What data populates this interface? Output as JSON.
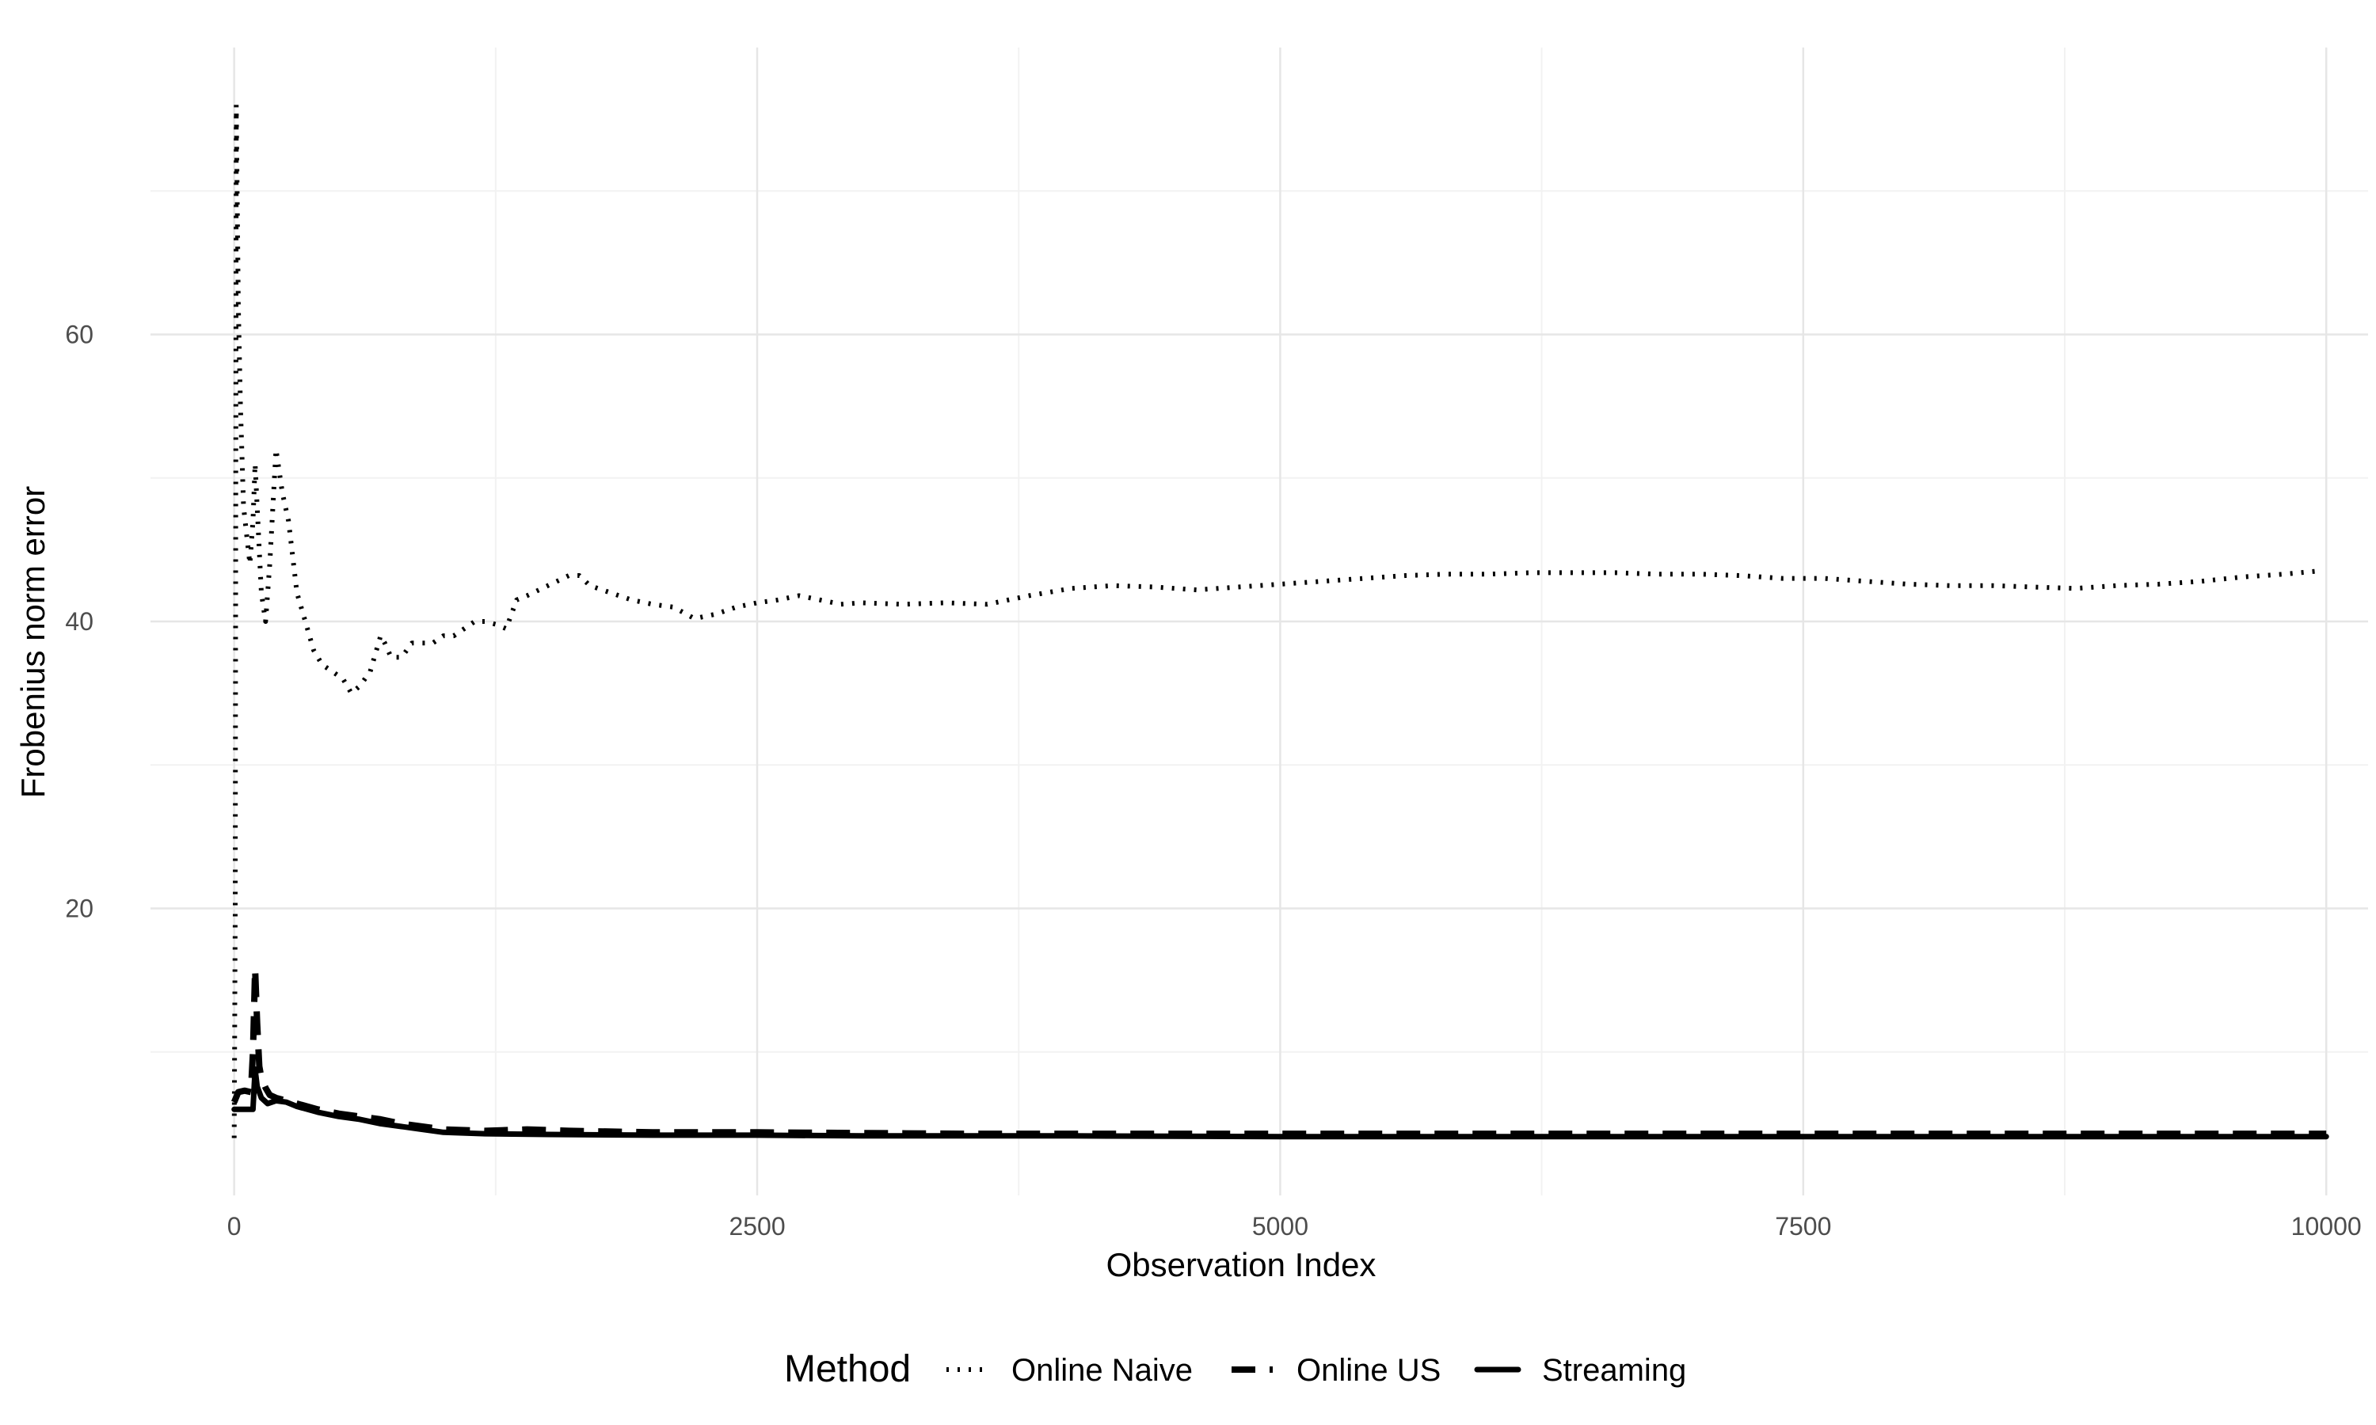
{
  "chart_data": {
    "type": "line",
    "xlabel": "Observation Index",
    "ylabel": "Frobenius norm error",
    "xlim": [
      -400,
      10200
    ],
    "ylim": [
      0,
      80
    ],
    "x_ticks": [
      0,
      2500,
      5000,
      7500,
      10000
    ],
    "y_ticks": [
      20,
      40,
      60
    ],
    "grid": true,
    "legend": {
      "title": "Method",
      "position": "bottom"
    },
    "series": [
      {
        "name": "Online Naive",
        "dash": "dotted",
        "x": [
          0,
          5,
          10,
          20,
          30,
          45,
          60,
          75,
          90,
          100,
          110,
          130,
          150,
          170,
          200,
          230,
          260,
          300,
          340,
          380,
          420,
          470,
          520,
          560,
          600,
          650,
          700,
          720,
          750,
          800,
          850,
          900,
          950,
          1000,
          1050,
          1100,
          1150,
          1200,
          1250,
          1300,
          1350,
          1400,
          1500,
          1600,
          1650,
          1700,
          1800,
          1900,
          2000,
          2100,
          2200,
          2300,
          2400,
          2500,
          2600,
          2700,
          2800,
          2900,
          3000,
          3200,
          3400,
          3600,
          3800,
          4000,
          4200,
          4400,
          4600,
          4800,
          5000,
          5200,
          5400,
          5600,
          5800,
          6000,
          6200,
          6400,
          6600,
          6800,
          7000,
          7200,
          7400,
          7600,
          7800,
          8000,
          8200,
          8400,
          8600,
          8800,
          9000,
          9200,
          9400,
          9600,
          9800,
          9950
        ],
        "y": [
          4,
          20,
          76,
          62,
          55,
          48,
          46,
          44,
          47,
          51,
          48,
          42,
          40,
          44,
          52,
          49,
          47,
          42,
          40,
          38,
          37,
          36.5,
          36,
          35,
          35.5,
          36.5,
          39,
          38.5,
          37.5,
          37.5,
          38.5,
          38.5,
          38.5,
          39,
          39,
          39.5,
          40,
          40,
          39.8,
          39.5,
          41.5,
          41.8,
          42.5,
          43.2,
          43.2,
          42.5,
          42,
          41.5,
          41.2,
          41,
          40.2,
          40.5,
          41,
          41.3,
          41.5,
          41.8,
          41.5,
          41.2,
          41.3,
          41.2,
          41.3,
          41.2,
          41.8,
          42.3,
          42.5,
          42.4,
          42.2,
          42.4,
          42.6,
          42.8,
          43.0,
          43.2,
          43.3,
          43.3,
          43.4,
          43.4,
          43.4,
          43.3,
          43.3,
          43.2,
          43.0,
          43.0,
          42.8,
          42.6,
          42.5,
          42.5,
          42.4,
          42.3,
          42.5,
          42.6,
          42.8,
          43.1,
          43.3,
          43.5
        ]
      },
      {
        "name": "Online US",
        "dash": "dashed",
        "x": [
          0,
          20,
          50,
          80,
          90,
          100,
          110,
          120,
          130,
          150,
          170,
          200,
          250,
          300,
          400,
          500,
          600,
          700,
          800,
          900,
          1000,
          1200,
          1400,
          1600,
          2000,
          2500,
          3000,
          3500,
          4000,
          5000,
          6000,
          7000,
          8000,
          9000,
          10000
        ],
        "y": [
          6.5,
          7.2,
          7.3,
          7.2,
          10,
          15.8,
          12,
          9,
          8.2,
          7.5,
          7,
          6.8,
          6.6,
          6.4,
          6.0,
          5.7,
          5.5,
          5.3,
          5.0,
          4.8,
          4.6,
          4.5,
          4.6,
          4.5,
          4.4,
          4.4,
          4.35,
          4.3,
          4.3,
          4.3,
          4.3,
          4.3,
          4.3,
          4.3,
          4.3
        ]
      },
      {
        "name": "Streaming",
        "dash": "solid",
        "x": [
          0,
          50,
          90,
          100,
          110,
          130,
          160,
          200,
          250,
          300,
          400,
          500,
          600,
          700,
          800,
          900,
          1000,
          1200,
          1500,
          2000,
          2500,
          3000,
          4000,
          5000,
          6000,
          7000,
          8000,
          9000,
          10000
        ],
        "y": [
          6.0,
          6.0,
          6.0,
          8.8,
          7.6,
          6.8,
          6.4,
          6.6,
          6.5,
          6.2,
          5.8,
          5.5,
          5.3,
          5.0,
          4.8,
          4.6,
          4.4,
          4.3,
          4.25,
          4.2,
          4.2,
          4.15,
          4.15,
          4.1,
          4.1,
          4.1,
          4.1,
          4.1,
          4.1
        ]
      }
    ]
  }
}
